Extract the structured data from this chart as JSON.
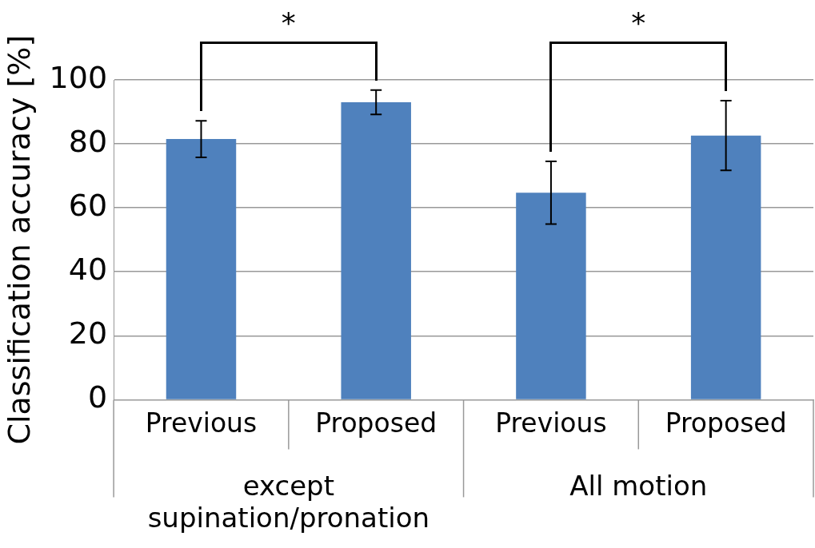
{
  "chart_data": {
    "type": "bar",
    "ylabel": "Classification accuracy [%]",
    "categories": [
      "Previous",
      "Proposed",
      "Previous",
      "Proposed"
    ],
    "values": [
      81.5,
      93,
      64.7,
      82.6
    ],
    "errors": [
      5.7,
      3.8,
      9.8,
      10.9
    ],
    "color": "#4f81bd",
    "ylim": [
      0,
      100
    ],
    "yticks": [
      0,
      20,
      40,
      60,
      80,
      100
    ],
    "grid": "y",
    "legend": false,
    "annotations": [
      "*",
      "*",
      "except supination/pronation",
      "All motion"
    ]
  }
}
